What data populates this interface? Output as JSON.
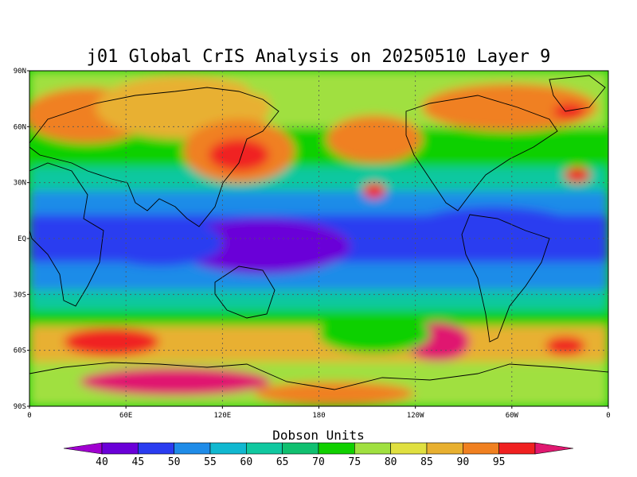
{
  "title": "j01 Global CrIS Analysis on 20250510 Layer 9",
  "map": {
    "lat_labels": [
      "90N",
      "60N",
      "30N",
      "EQ",
      "30S",
      "60S",
      "90S"
    ],
    "lon_labels": [
      "0",
      "60E",
      "120E",
      "180",
      "120W",
      "60W",
      "0"
    ]
  },
  "colorbar": {
    "label": "Dobson Units",
    "ticks": [
      "40",
      "45",
      "50",
      "55",
      "60",
      "65",
      "70",
      "75",
      "80",
      "85",
      "90",
      "95"
    ],
    "colors": [
      "#a000d0",
      "#6a00d8",
      "#2a3cf0",
      "#1f8ce8",
      "#10b8d0",
      "#10c8a0",
      "#10c070",
      "#10d000",
      "#a0e040",
      "#e0e040",
      "#e8b030",
      "#f08020",
      "#f02020",
      "#e01870"
    ]
  },
  "palette": {
    "c40": "#a000d0",
    "c45": "#6a00d8",
    "c50": "#2a3cf0",
    "c55": "#1f8ce8",
    "c60": "#10b8d0",
    "c65": "#10c8a0",
    "c70": "#10c070",
    "c75": "#10d000",
    "c80": "#a0e040",
    "c85": "#e0e040",
    "c90": "#e8b030",
    "c95": "#f08020",
    "c100": "#f02020",
    "c105": "#e01870"
  }
}
